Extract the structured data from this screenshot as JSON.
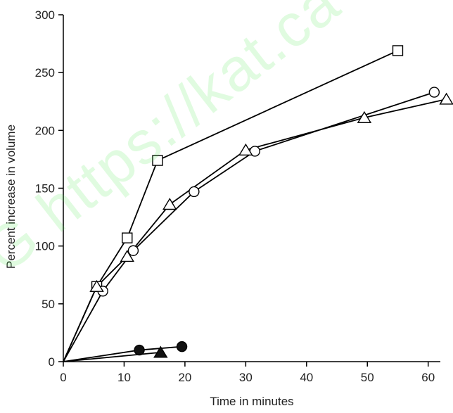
{
  "watermark": "G https://kat.ca",
  "chart_data": {
    "type": "line",
    "title": "",
    "xlabel": "Time in minutes",
    "ylabel": "Percent increase in volume",
    "xlim": [
      0,
      62
    ],
    "ylim": [
      0,
      300
    ],
    "x_ticks": [
      0,
      10,
      20,
      30,
      40,
      50,
      60
    ],
    "y_ticks": [
      0,
      50,
      100,
      150,
      200,
      250,
      300
    ],
    "grid": false,
    "legend": "none",
    "series": [
      {
        "marker": "open-square",
        "points": [
          [
            0,
            0
          ],
          [
            5.5,
            65
          ],
          [
            10.5,
            107
          ],
          [
            15.5,
            174
          ],
          [
            55,
            269
          ]
        ]
      },
      {
        "marker": "open-circle",
        "points": [
          [
            0,
            0
          ],
          [
            6.5,
            61
          ],
          [
            11.5,
            96
          ],
          [
            21.5,
            147
          ],
          [
            31.5,
            182
          ],
          [
            61,
            233
          ]
        ]
      },
      {
        "marker": "open-triangle",
        "points": [
          [
            0,
            0
          ],
          [
            5.5,
            65
          ],
          [
            10.5,
            91
          ],
          [
            17.5,
            136
          ],
          [
            30,
            183
          ],
          [
            49.5,
            211
          ],
          [
            63,
            227
          ]
        ]
      },
      {
        "marker": "filled-circle",
        "points": [
          [
            0,
            0
          ],
          [
            12.5,
            10
          ],
          [
            19.5,
            13
          ]
        ]
      },
      {
        "marker": "filled-triangle",
        "points": [
          [
            0,
            0
          ],
          [
            16,
            8
          ]
        ]
      }
    ]
  }
}
